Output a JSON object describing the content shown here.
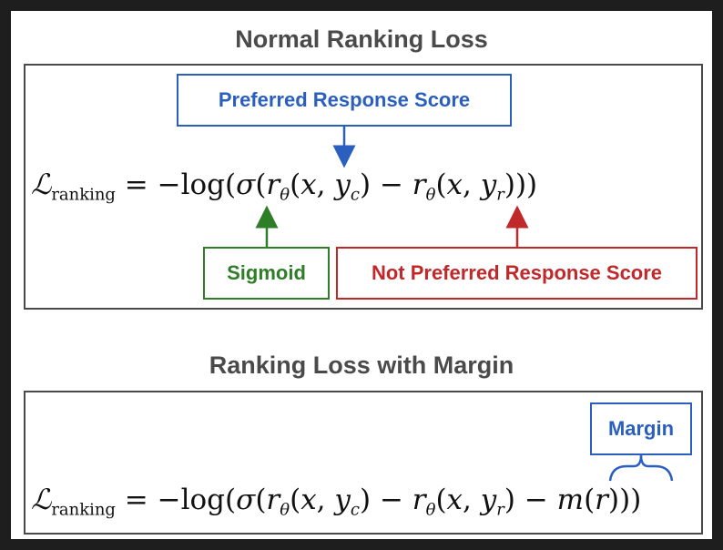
{
  "top": {
    "title": "Normal Ranking Loss",
    "labels": {
      "preferred": "Preferred Response Score",
      "sigmoid": "Sigmoid",
      "not_preferred": "Not Preferred Response Score"
    },
    "formula": {
      "lhs_symbol": "ℒ",
      "lhs_subscript": "ranking",
      "equals": "=",
      "neg_log": "−log",
      "open": "(",
      "sigma": "σ",
      "r": "r",
      "theta": "θ",
      "args_c_open": "(",
      "x": "x",
      "comma": ", ",
      "y": "y",
      "c": "c",
      "args_close": ")",
      "minus": " − ",
      "r2": "r",
      "theta2": "θ",
      "args_r_open": "(",
      "x2": "x",
      "comma2": ", ",
      "y2": "y",
      "rsub": "r",
      "close_all": ")))"
    }
  },
  "bottom": {
    "title": "Ranking Loss with Margin",
    "labels": {
      "margin": "Margin"
    },
    "formula": {
      "lhs_symbol": "ℒ",
      "lhs_subscript": "ranking",
      "equals": "=",
      "neg_log": "−log",
      "open": "(",
      "sigma": "σ",
      "r": "r",
      "theta": "θ",
      "args_c_open": "(",
      "x": "x",
      "comma": ", ",
      "y": "y",
      "c": "c",
      "args_close": ")",
      "minus": " − ",
      "r2": "r",
      "theta2": "θ",
      "args_r_open": "(",
      "x2": "x",
      "comma2": ", ",
      "y2": "y",
      "rsub": "r",
      "args_close2": ")",
      "minus2": " − ",
      "m": "m",
      "m_open": "(",
      "m_arg": "r",
      "close_all": ")))"
    }
  },
  "colors": {
    "preferred": "#2a5fbf",
    "sigmoid": "#2e7d27",
    "not_preferred": "#c0282a",
    "margin": "#2a5fbf",
    "frame": "#4a4a4a",
    "title": "#4a4a4a"
  }
}
